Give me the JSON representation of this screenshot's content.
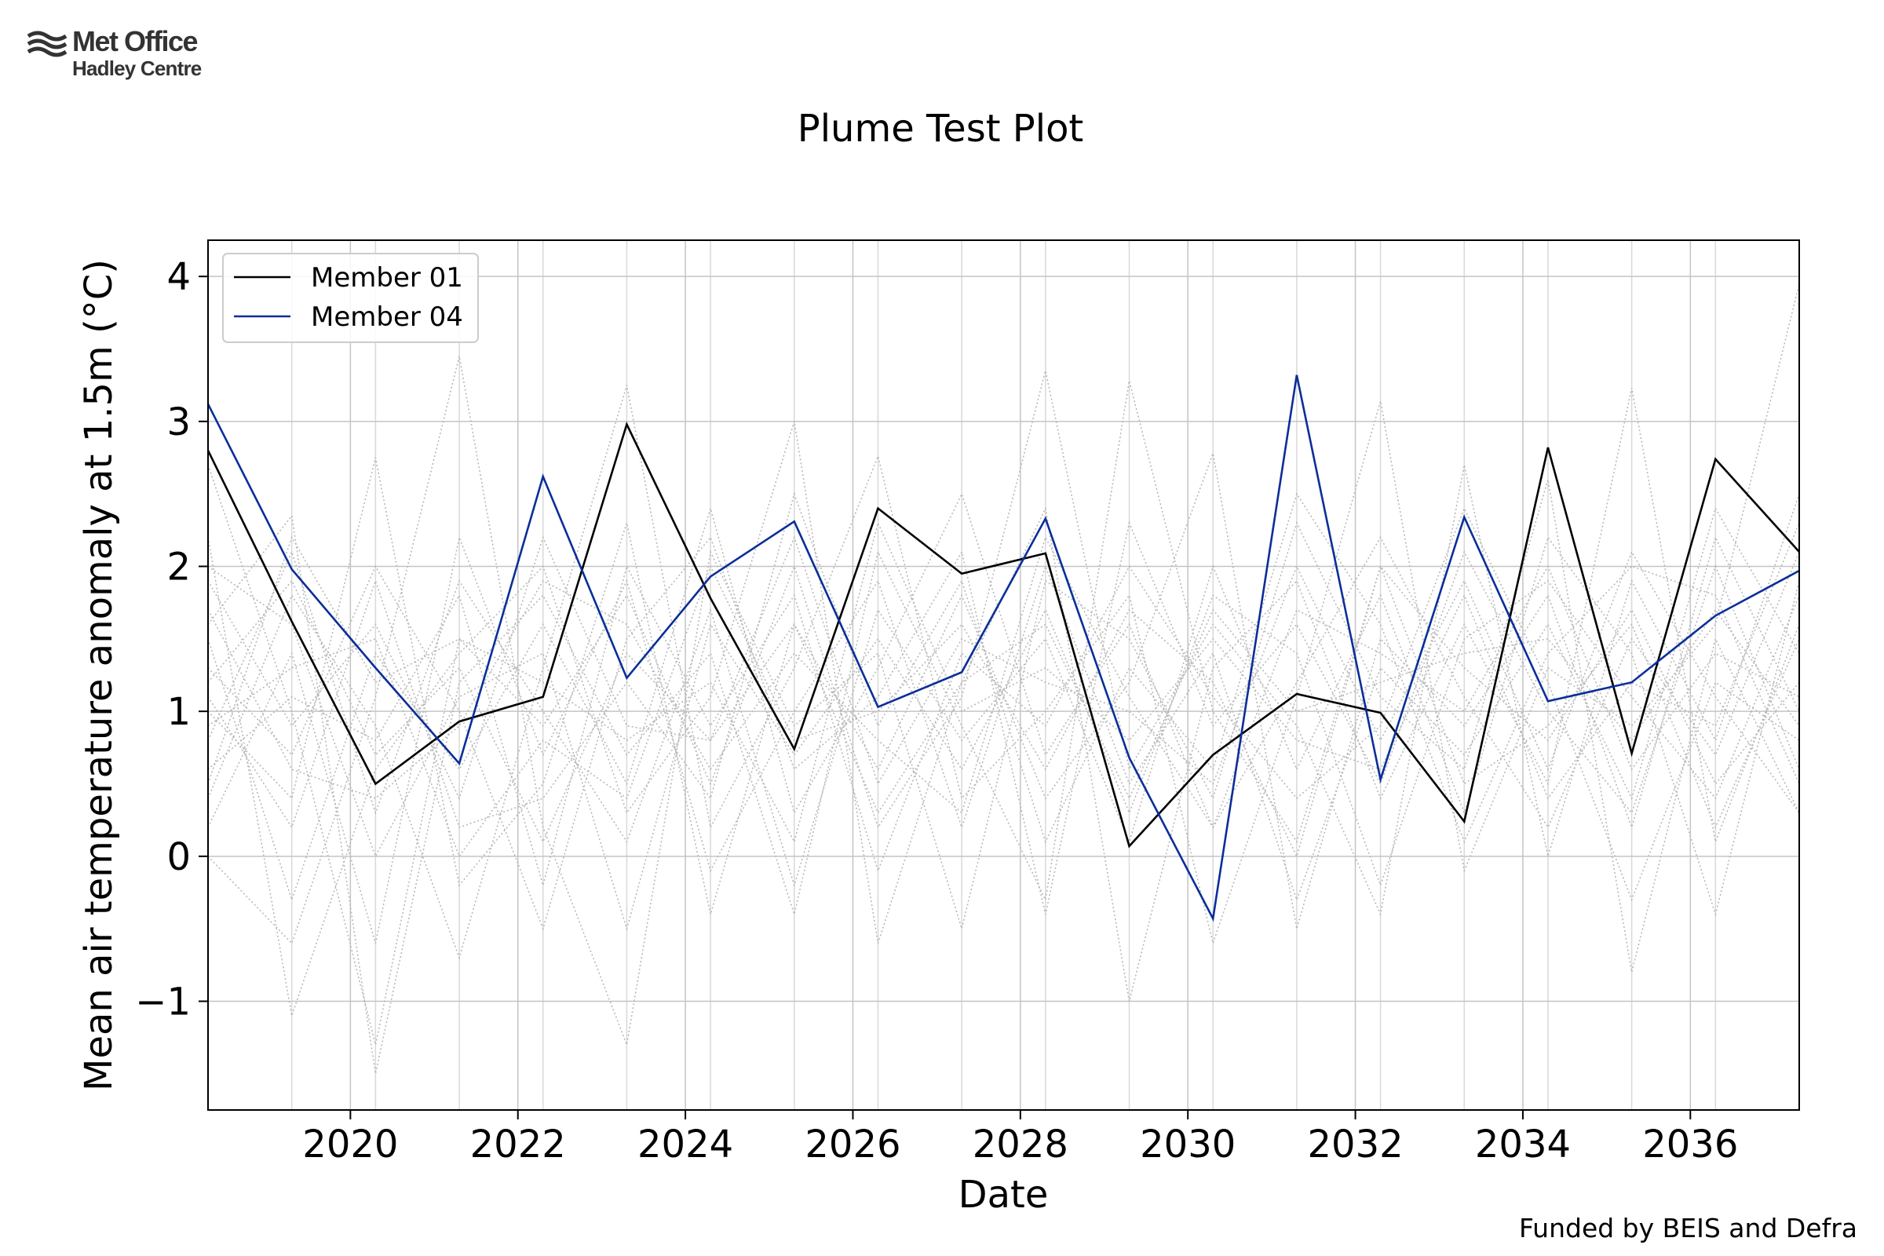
{
  "logo": {
    "line1": "Met Office",
    "line2": "Hadley Centre",
    "icon": "met-office-waves-icon"
  },
  "footer": {
    "funded_by": "Funded by BEIS and Defra"
  },
  "chart_data": {
    "type": "line",
    "title": "Plume Test Plot",
    "xlabel": "Date",
    "ylabel": "Mean air temperature anomaly at 1.5m (°C)",
    "x": [
      2018.3,
      2019.3,
      2020.3,
      2021.3,
      2022.3,
      2023.3,
      2024.3,
      2025.3,
      2026.3,
      2027.3,
      2028.3,
      2029.3,
      2030.3,
      2031.3,
      2032.3,
      2033.3,
      2034.3,
      2035.3,
      2036.3,
      2037.3
    ],
    "xlim": [
      2018.3,
      2037.3
    ],
    "ylim": [
      -1.75,
      4.25
    ],
    "xticks": [
      2020,
      2022,
      2024,
      2026,
      2028,
      2030,
      2032,
      2034,
      2036
    ],
    "yticks": [
      -1,
      0,
      1,
      2,
      3,
      4
    ],
    "ytick_labels": [
      "−1",
      "0",
      "1",
      "2",
      "3",
      "4"
    ],
    "grid": true,
    "legend_position": "top-left",
    "highlight_series": [
      {
        "name": "Member 01",
        "color": "#000000",
        "values": [
          2.8,
          1.62,
          0.5,
          0.93,
          1.1,
          2.98,
          1.78,
          0.74,
          2.4,
          1.95,
          2.09,
          0.07,
          0.7,
          1.12,
          0.99,
          0.24,
          2.82,
          0.71,
          2.74,
          2.1
        ]
      },
      {
        "name": "Member 04",
        "color": "#0a2e99",
        "values": [
          3.12,
          1.98,
          1.3,
          0.64,
          2.62,
          1.23,
          1.93,
          2.31,
          1.03,
          1.27,
          2.33,
          0.68,
          -0.43,
          3.32,
          0.53,
          2.34,
          1.07,
          1.2,
          1.66,
          1.97
        ]
      }
    ],
    "background_series_color": "#b8b8b8",
    "background_series": [
      [
        2.7,
        1.0,
        -1.3,
        1.5,
        0.9,
        1.8,
        0.5,
        2.0,
        0.2,
        1.1,
        3.35,
        0.6,
        1.6,
        0.9,
        -0.4,
        2.7,
        0.0,
        1.9,
        0.8,
        2.5
      ],
      [
        0.0,
        -0.6,
        1.1,
        3.45,
        0.2,
        -1.3,
        2.1,
        0.9,
        1.4,
        -0.5,
        1.9,
        1.5,
        0.4,
        2.3,
        1.1,
        0.6,
        2.6,
        -0.8,
        1.5,
        0.3
      ],
      [
        1.6,
        2.35,
        -1.5,
        1.2,
        1.8,
        0.7,
        1.4,
        -0.4,
        2.1,
        0.9,
        -0.3,
        3.28,
        1.0,
        0.1,
        2.0,
        1.3,
        0.8,
        1.7,
        0.5,
        1.2
      ],
      [
        1.0,
        0.4,
        2.75,
        -0.2,
        0.5,
        2.3,
        -0.4,
        1.6,
        0.6,
        1.8,
        0.4,
        1.2,
        2.78,
        -0.5,
        1.5,
        0.9,
        1.8,
        0.2,
        2.2,
        1.0
      ],
      [
        2.2,
        -1.1,
        0.6,
        1.4,
        2.0,
        0.3,
        1.1,
        3.0,
        -0.6,
        1.2,
        2.4,
        -1.0,
        1.3,
        1.9,
        0.4,
        1.6,
        0.5,
        3.23,
        0.1,
        1.6
      ],
      [
        0.4,
        1.8,
        0.9,
        -0.7,
        1.3,
        3.25,
        0.2,
        1.3,
        2.76,
        0.4,
        1.0,
        1.8,
        -0.6,
        1.1,
        3.14,
        -0.1,
        1.3,
        0.9,
        1.6,
        3.95
      ],
      [
        1.3,
        0.7,
        2.0,
        1.0,
        -0.5,
        1.5,
        2.2,
        0.6,
        1.1,
        2.1,
        -0.4,
        2.3,
        0.9,
        1.6,
        0.5,
        2.1,
        1.0,
        0.3,
        2.0,
        0.6
      ],
      [
        0.8,
        2.1,
        0.3,
        1.9,
        1.0,
        0.1,
        1.7,
        -0.2,
        1.7,
        0.8,
        1.5,
        0.1,
        2.0,
        0.6,
        1.8,
        0.3,
        2.2,
        1.4,
        -0.4,
        1.9
      ],
      [
        1.9,
        0.9,
        1.6,
        0.4,
        2.2,
        0.9,
        0.8,
        2.2,
        0.5,
        1.5,
        1.2,
        1.0,
        0.5,
        2.0,
        0.8,
        1.9,
        0.6,
        2.1,
        1.1,
        0.3
      ],
      [
        0.2,
        1.4,
        -0.6,
        2.2,
        0.7,
        1.9,
        -0.1,
        1.0,
        1.9,
        0.2,
        2.0,
        0.5,
        1.4,
        -0.3,
        1.3,
        0.7,
        1.6,
        0.4,
        2.4,
        1.4
      ],
      [
        1.5,
        -0.3,
        1.4,
        0.6,
        1.6,
        0.5,
        2.4,
        0.3,
        1.3,
        2.5,
        0.7,
        1.6,
        0.2,
        1.2,
        2.2,
        1.1,
        0.2,
        1.5,
        0.7,
        2.1
      ],
      [
        0.6,
        1.1,
        0.8,
        1.8,
        -0.2,
        2.0,
        0.9,
        1.8,
        -0.1,
        1.4,
        0.9,
        2.0,
        1.1,
        0.4,
        0.9,
        2.4,
        1.2,
        -0.3,
        1.2,
        0.8
      ],
      [
        2.0,
        1.6,
        0.0,
        1.1,
        1.4,
        -0.5,
        1.6,
        0.7,
        1.5,
        0.6,
        1.7,
        0.3,
        1.8,
        1.4,
        -0.2,
        1.5,
        1.9,
        1.1,
        0.4,
        1.8
      ],
      [
        1.1,
        0.2,
        1.9,
        0.2,
        0.4,
        1.2,
        0.4,
        2.5,
        0.9,
        1.9,
        0.1,
        1.3,
        0.6,
        2.5,
        1.6,
        0.1,
        1.4,
        2.0,
        1.8,
        0.5
      ],
      [
        0.5,
        2.2,
        1.2,
        1.5,
        1.2,
        0.8,
        1.2,
        0.1,
        2.3,
        1.0,
        1.3,
        0.8,
        1.5,
        0.8,
        0.6,
        1.8,
        0.4,
        1.2,
        0.9,
        2.3
      ],
      [
        1.7,
        0.6,
        0.4,
        0.9,
        1.9,
        1.6,
        0.6,
        1.4,
        0.8,
        0.3,
        2.2,
        1.1,
        0.2,
        1.7,
        1.4,
        1.0,
        2.0,
        0.6,
        1.4,
        1.1
      ],
      [
        0.9,
        1.3,
        1.5,
        0.0,
        0.8,
        0.4,
        2.0,
        0.8,
        1.0,
        1.6,
        0.6,
        1.7,
        1.2,
        0.0,
        2.0,
        0.5,
        0.9,
        1.6,
        0.2,
        1.5
      ],
      [
        1.2,
        1.9,
        0.7,
        1.3,
        0.1,
        1.4,
        0.8,
        1.6,
        0.3,
        1.2,
        1.6,
        0.4,
        1.7,
        1.0,
        1.2,
        1.4,
        1.5,
        0.8,
        1.7,
        0.9
      ]
    ]
  }
}
